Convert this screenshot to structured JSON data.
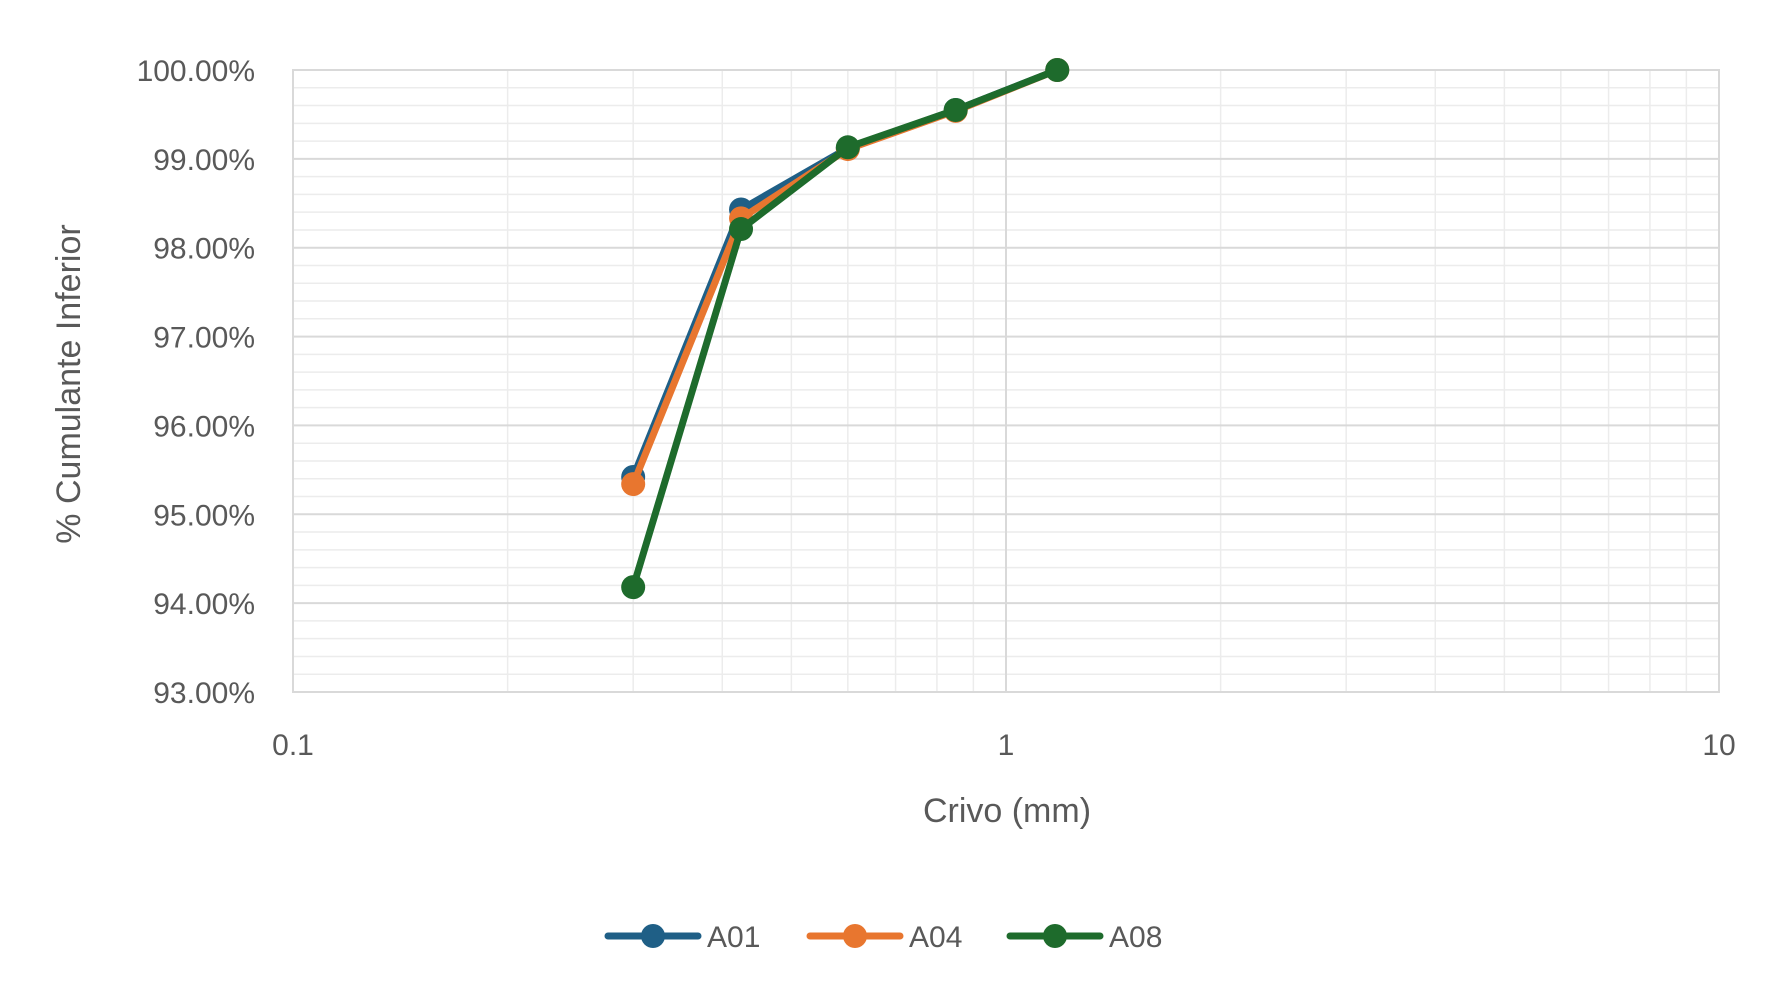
{
  "chart_data": {
    "type": "line",
    "xscale": "log",
    "xlabel": "Crivo (mm)",
    "ylabel": "% Cumulante Inferior",
    "xlim": [
      0.1,
      10
    ],
    "ylim": [
      0.93,
      1.0
    ],
    "x_ticks": [
      "0.1",
      "1",
      "10"
    ],
    "y_ticks": [
      "93.00%",
      "94.00%",
      "95.00%",
      "96.00%",
      "97.00%",
      "98.00%",
      "99.00%",
      "100.00%"
    ],
    "grid": true,
    "legend_position": "bottom",
    "series": [
      {
        "name": "A01",
        "color": "#1f5f86",
        "x": [
          0.3,
          0.425,
          0.6,
          0.85,
          1.18
        ],
        "y": [
          0.9542,
          0.9843,
          0.9912,
          0.9955,
          1.0
        ]
      },
      {
        "name": "A04",
        "color": "#e8762f",
        "x": [
          0.3,
          0.425,
          0.6,
          0.85,
          1.18
        ],
        "y": [
          0.9534,
          0.9833,
          0.9911,
          0.9954,
          1.0
        ]
      },
      {
        "name": "A08",
        "color": "#1e6b2c",
        "x": [
          0.3,
          0.425,
          0.6,
          0.85,
          1.18
        ],
        "y": [
          0.9418,
          0.9821,
          0.9913,
          0.9955,
          1.0
        ]
      }
    ]
  }
}
